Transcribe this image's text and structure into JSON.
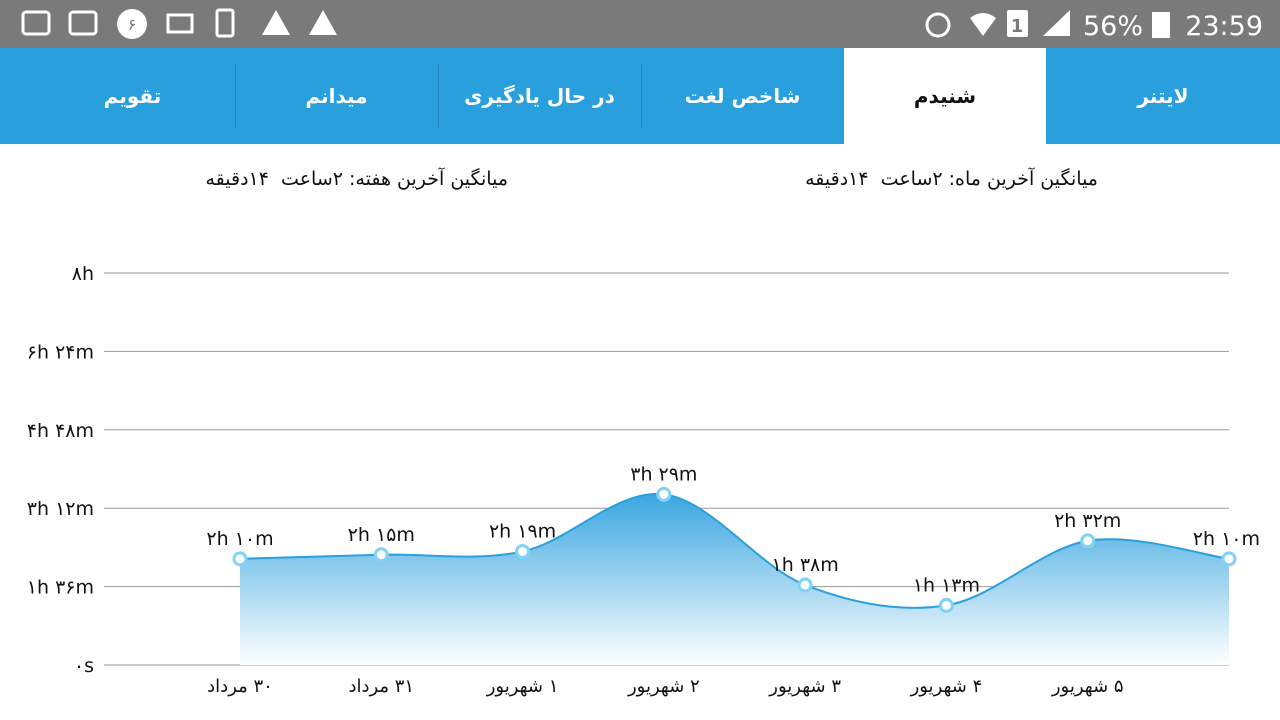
{
  "status_bar": {
    "notification_badge": "۶",
    "sim_badge": "1",
    "battery": "56%",
    "time": "23:59"
  },
  "tabs": [
    "لایتنر",
    "شنیدم",
    "شاخص لغت",
    "در حال یادگیری",
    "میدانم",
    "تقویم"
  ],
  "selected_tab": "شنیدم",
  "stats": {
    "month_average": "میانگین آخرین ماه: ۲ساعت  ۱۴دقیقه",
    "week_average": "میانگین آخرین هفته: ۲ساعت  ۱۴دقیقه"
  },
  "chart_data": {
    "type": "area",
    "categories": [
      "۳۰ مرداد",
      "۳۱ مرداد",
      "۱ شهریور",
      "۲ شهریور",
      "۳ شهریور",
      "۴ شهریور",
      "۵ شهریور",
      null
    ],
    "values": [
      130,
      135,
      139,
      209,
      98,
      73,
      152,
      130
    ],
    "value_labels": [
      "۲h ۱۰m",
      "۲h ۱۵m",
      "۲h ۱۹m",
      "۳h ۲۹m",
      "۱h ۳۸m",
      "۱h ۱۳m",
      "۲h ۳۲m",
      "۲h ۱۰m"
    ],
    "color": "#2a9fdd",
    "ylim": [
      0,
      480
    ],
    "yticks": [
      {
        "value": 0,
        "label": "۰s"
      },
      {
        "value": 96,
        "label": "۱h ۳۶m"
      },
      {
        "value": 192,
        "label": "۳h ۱۲m"
      },
      {
        "value": 288,
        "label": "۴h ۴۸m"
      },
      {
        "value": 384,
        "label": "۶h ۲۴m"
      },
      {
        "value": 480,
        "label": "۸h"
      }
    ],
    "grid": true
  }
}
